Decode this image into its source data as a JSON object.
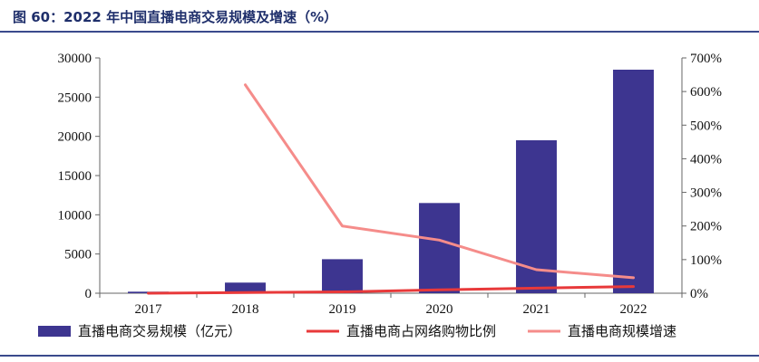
{
  "figure_title": "图 60：2022 年中国直播电商交易规模及增速（%）",
  "chart_data": {
    "type": "bar",
    "title": "图 60：2022 年中国直播电商交易规模及增速（%）",
    "categories": [
      "2017",
      "2018",
      "2019",
      "2020",
      "2021",
      "2022"
    ],
    "series": [
      {
        "name": "直播电商交易规模（亿元）",
        "type": "bar",
        "axis": "left",
        "color": "#3d3590",
        "values": [
          196,
          1354,
          4338,
          11500,
          19500,
          28500
        ]
      },
      {
        "name": "直播电商占网络购物比例",
        "type": "line",
        "axis": "right",
        "color": "#e8393a",
        "values": [
          0.0,
          0.02,
          0.04,
          0.1,
          0.15,
          0.2
        ]
      },
      {
        "name": "直播电商规模增速",
        "type": "line",
        "axis": "right",
        "color": "#f58c8a",
        "values": [
          null,
          6.2,
          2.0,
          1.58,
          0.7,
          0.46
        ]
      }
    ],
    "y_left": {
      "range": [
        0,
        30000
      ],
      "ticks": [
        0,
        5000,
        10000,
        15000,
        20000,
        25000,
        30000
      ],
      "tick_labels": [
        "0",
        "5000",
        "10000",
        "15000",
        "20000",
        "25000",
        "30000"
      ]
    },
    "y_right": {
      "range": [
        0,
        7
      ],
      "ticks": [
        0,
        1,
        2,
        3,
        4,
        5,
        6,
        7
      ],
      "tick_labels": [
        "0%",
        "100%",
        "200%",
        "300%",
        "400%",
        "500%",
        "600%",
        "700%"
      ]
    },
    "legend": "bottom",
    "grid": false
  }
}
